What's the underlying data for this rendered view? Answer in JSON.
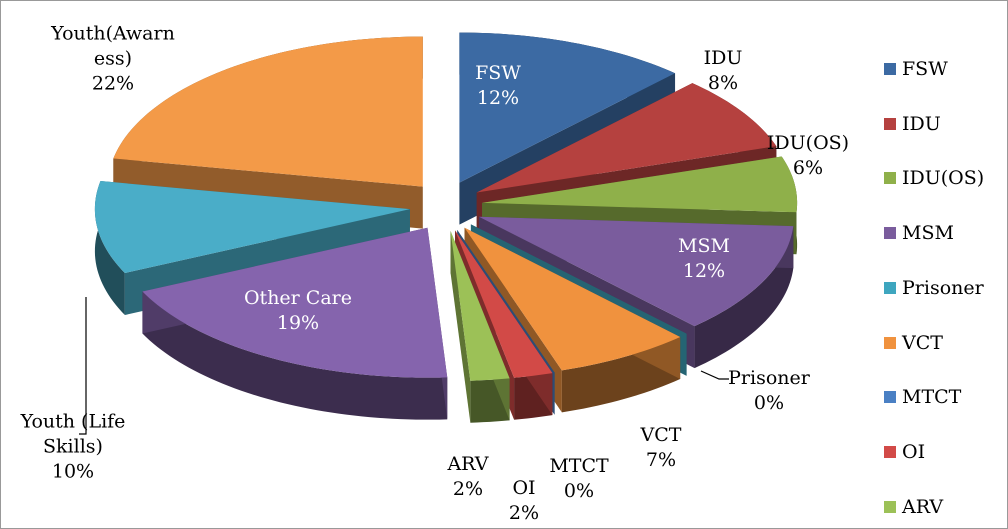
{
  "chart_data": {
    "type": "pie",
    "categories": [
      "FSW",
      "IDU",
      "IDU(OS)",
      "MSM",
      "Prisoner",
      "VCT",
      "MTCT",
      "OI",
      "ARV",
      "Other Care",
      "Youth (Life Skills)",
      "Youth(Awarness)"
    ],
    "values": [
      12,
      8,
      6,
      12,
      0,
      7,
      0,
      2,
      2,
      19,
      10,
      22
    ],
    "value_labels": [
      "12%",
      "8%",
      "6%",
      "12%",
      "0%",
      "7%",
      "0%",
      "2%",
      "2%",
      "19%",
      "10%",
      "22%"
    ],
    "colors": [
      "#3c6aa3",
      "#b5413f",
      "#8fb04a",
      "#7a5c9d",
      "#3ea6bf",
      "#f0923e",
      "#4a80c4",
      "#d24a47",
      "#9cc157",
      "#8564ad",
      "#4aadc8",
      "#f39a48"
    ],
    "legend": "right"
  }
}
